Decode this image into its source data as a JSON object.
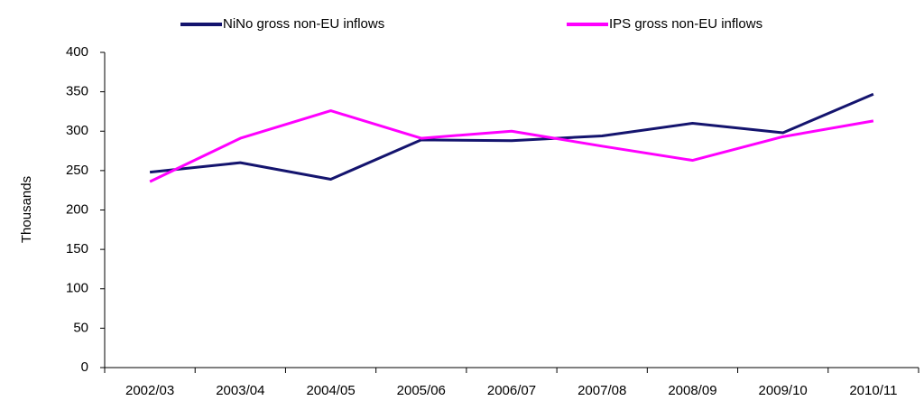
{
  "chart_data": {
    "type": "line",
    "y_label": "Thousands",
    "categories": [
      "2002/03",
      "2003/04",
      "2004/05",
      "2005/06",
      "2006/07",
      "2007/08",
      "2008/09",
      "2009/10",
      "2010/11"
    ],
    "series": [
      {
        "name": "NiNo gross non-EU inflows",
        "color": "#14146e",
        "values": [
          248,
          260,
          239,
          289,
          288,
          294,
          310,
          298,
          347
        ]
      },
      {
        "name": "IPS gross non-EU inflows",
        "color": "#ff00ff",
        "values": [
          236,
          291,
          326,
          291,
          300,
          281,
          263,
          293,
          313
        ]
      }
    ],
    "ylim": [
      0,
      400
    ],
    "yticks": [
      0,
      50,
      100,
      150,
      200,
      250,
      300,
      350,
      400
    ],
    "grid": false,
    "legend": "top"
  }
}
